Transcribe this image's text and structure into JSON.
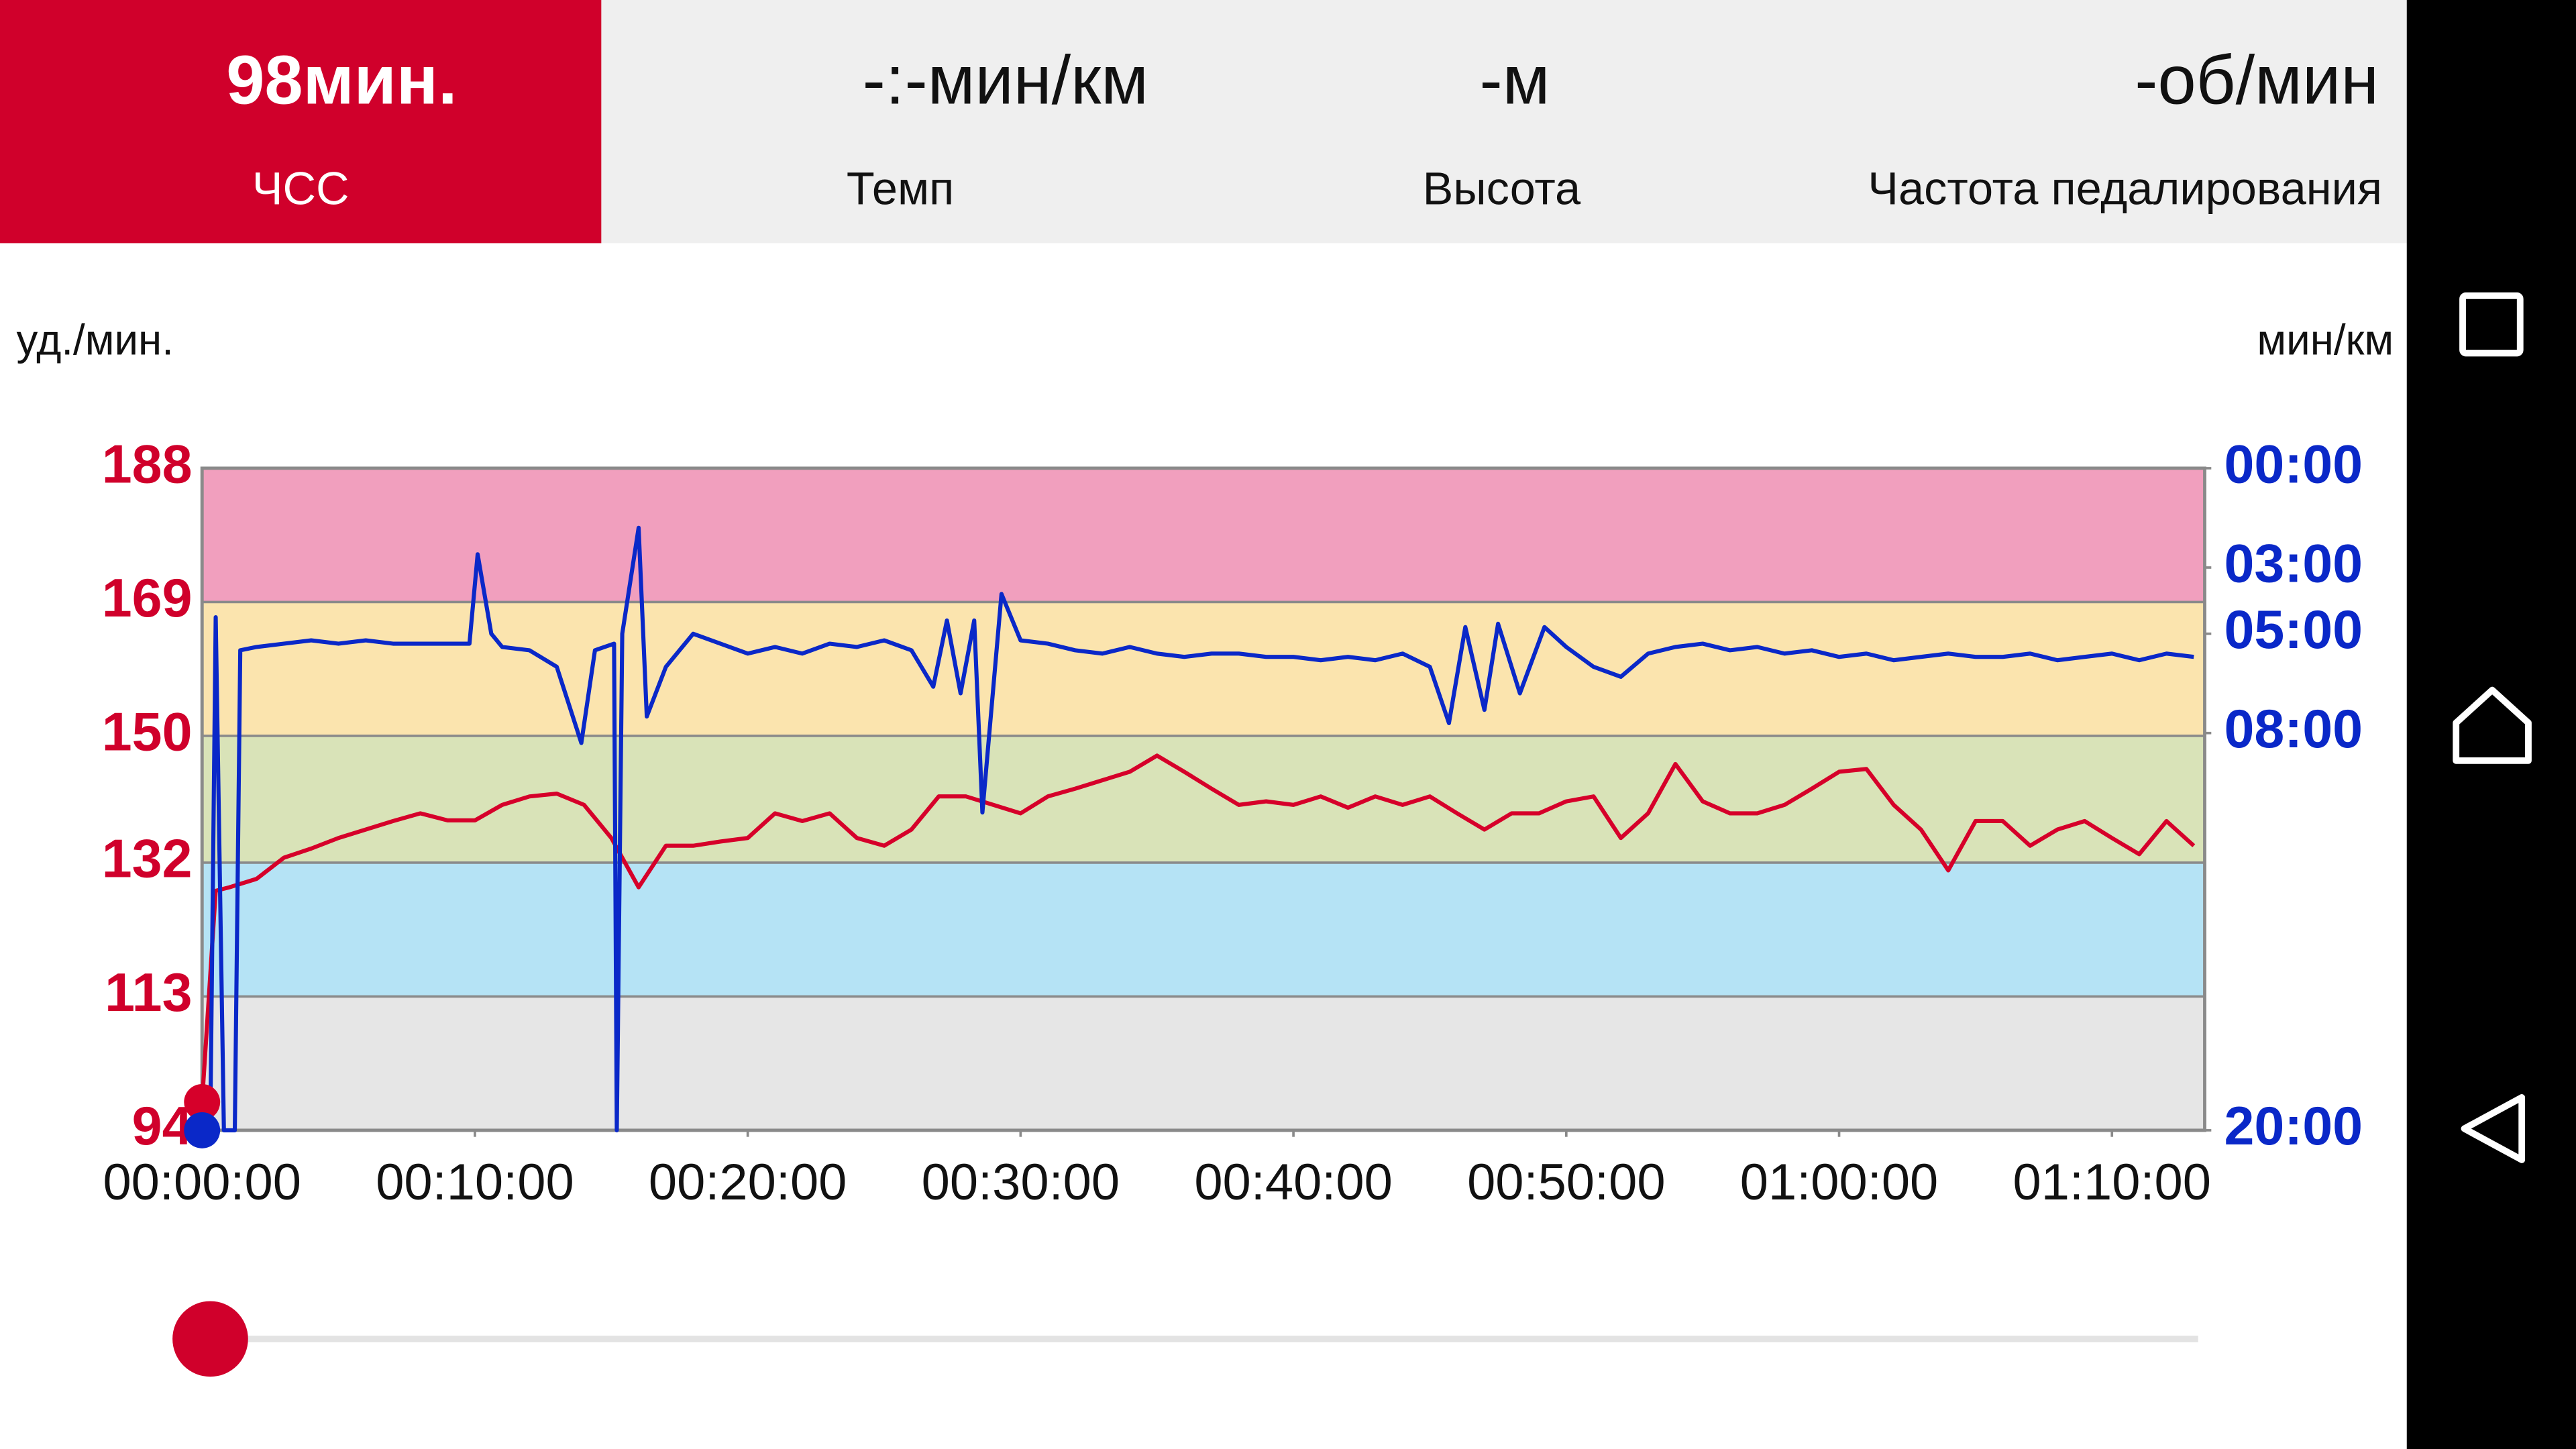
{
  "header": {
    "tiles": [
      {
        "value": "98мин.",
        "label": "ЧСС"
      },
      {
        "value": "-:-мин/км",
        "label": "Темп"
      },
      {
        "value": "-м",
        "label": "Высота"
      },
      {
        "value": "-об/мин",
        "label": "Частота педалирования"
      }
    ]
  },
  "chart_data": {
    "type": "line",
    "ylabel": "уд./мин.",
    "y2label": "мин/км",
    "ylim": [
      94,
      188
    ],
    "yticks": [
      94,
      113,
      132,
      150,
      169,
      188
    ],
    "y2lim": [
      20,
      0
    ],
    "y2ticks": [
      {
        "value": 20,
        "label": "20:00"
      },
      {
        "value": 8,
        "label": "08:00"
      },
      {
        "value": 5,
        "label": "05:00"
      },
      {
        "value": 3,
        "label": "03:00"
      },
      {
        "value": 0,
        "label": "00:00"
      }
    ],
    "xlim": [
      0,
      73.4
    ],
    "xticks": [
      {
        "value": 0,
        "label": "00:00:00"
      },
      {
        "value": 10,
        "label": "00:10:00"
      },
      {
        "value": 20,
        "label": "00:20:00"
      },
      {
        "value": 30,
        "label": "00:30:00"
      },
      {
        "value": 40,
        "label": "00:40:00"
      },
      {
        "value": 50,
        "label": "00:50:00"
      },
      {
        "value": 60,
        "label": "01:00:00"
      },
      {
        "value": 70,
        "label": "01:10:00"
      }
    ],
    "zones": [
      {
        "from": 94,
        "to": 113,
        "color": "#e6e6e6"
      },
      {
        "from": 113,
        "to": 132,
        "color": "#b5e3f5"
      },
      {
        "from": 132,
        "to": 150,
        "color": "#d9e3b8"
      },
      {
        "from": 150,
        "to": 169,
        "color": "#fbe4ae"
      },
      {
        "from": 169,
        "to": 188,
        "color": "#f19fbe"
      }
    ],
    "series": [
      {
        "name": "ЧСС",
        "color": "#d6002a",
        "x": [
          0,
          0.5,
          1,
          2,
          3,
          4,
          5,
          6,
          7,
          8,
          9,
          10,
          11,
          12,
          13,
          14,
          15,
          16,
          17,
          18,
          19,
          20,
          21,
          22,
          23,
          24,
          25,
          26,
          27,
          28,
          29,
          30,
          31,
          32,
          33,
          34,
          35,
          36,
          37,
          38,
          39,
          40,
          41,
          42,
          43,
          44,
          45,
          46,
          47,
          48,
          49,
          50,
          51,
          52,
          53,
          54,
          55,
          56,
          57,
          58,
          59,
          60,
          61,
          62,
          63,
          64,
          65,
          66,
          67,
          68,
          69,
          70,
          71,
          72,
          73
        ],
        "values": [
          98,
          128,
          128.5,
          129.7,
          132.7,
          134,
          135.5,
          136.7,
          137.9,
          139,
          138,
          138,
          140.2,
          141.4,
          141.8,
          140.2,
          135.5,
          128.5,
          134.4,
          134.4,
          135,
          135.5,
          139,
          137.9,
          139,
          135.5,
          134.4,
          136.7,
          141.4,
          141.4,
          140.2,
          139,
          141.4,
          142.5,
          143.7,
          144.9,
          147.2,
          144.9,
          142.5,
          140.2,
          140.7,
          140.2,
          141.4,
          139.8,
          141.4,
          140.2,
          141.4,
          139,
          136.7,
          139,
          139,
          140.7,
          141.4,
          135.5,
          139,
          146,
          140.7,
          139,
          139,
          140.2,
          142.5,
          144.9,
          145.3,
          140.2,
          136.7,
          130.9,
          137.9,
          137.9,
          134.4,
          136.7,
          137.9,
          135.5,
          133.2,
          137.9,
          134.4
        ]
      },
      {
        "name": "Темп",
        "color": "#0a28c8",
        "axis": "y2",
        "x": [
          0,
          0.3,
          0.5,
          0.8,
          1.2,
          1.4,
          2,
          3,
          4,
          5,
          6,
          7,
          8,
          9,
          9.8,
          10.1,
          10.6,
          11,
          12,
          13,
          13.9,
          14.4,
          15.1,
          15.2,
          15.4,
          16,
          16.3,
          17,
          18,
          19,
          20,
          21,
          22,
          23,
          24,
          25,
          26,
          26.8,
          27.3,
          27.8,
          28.3,
          28.6,
          29.3,
          30,
          31,
          32,
          33,
          34,
          35,
          36,
          37,
          38,
          39,
          40,
          41,
          42,
          43,
          44,
          45,
          45.7,
          46.3,
          47,
          47.5,
          48.3,
          49.2,
          50,
          51,
          52,
          53,
          54,
          55,
          56,
          57,
          58,
          59,
          60,
          61,
          62,
          63,
          64,
          65,
          66,
          67,
          68,
          69,
          70,
          71,
          72,
          73
        ],
        "values": [
          20,
          20,
          4.5,
          20,
          20,
          5.5,
          5.4,
          5.3,
          5.2,
          5.3,
          5.2,
          5.3,
          5.3,
          5.3,
          5.3,
          2.6,
          5.0,
          5.4,
          5.5,
          6.0,
          8.3,
          5.5,
          5.3,
          20,
          5.0,
          1.8,
          7.5,
          6.0,
          5.0,
          5.3,
          5.6,
          5.4,
          5.6,
          5.3,
          5.4,
          5.2,
          5.5,
          6.6,
          4.6,
          6.8,
          4.6,
          10.4,
          3.8,
          5.2,
          5.3,
          5.5,
          5.6,
          5.4,
          5.6,
          5.7,
          5.6,
          5.6,
          5.7,
          5.7,
          5.8,
          5.7,
          5.8,
          5.6,
          6.0,
          7.7,
          4.8,
          7.3,
          4.7,
          6.8,
          4.8,
          5.4,
          6.0,
          6.3,
          5.6,
          5.4,
          5.3,
          5.5,
          5.4,
          5.6,
          5.5,
          5.7,
          5.6,
          5.8,
          5.7,
          5.6,
          5.7,
          5.7,
          5.6,
          5.8,
          5.7,
          5.6,
          5.8,
          5.6,
          5.7
        ]
      }
    ]
  }
}
